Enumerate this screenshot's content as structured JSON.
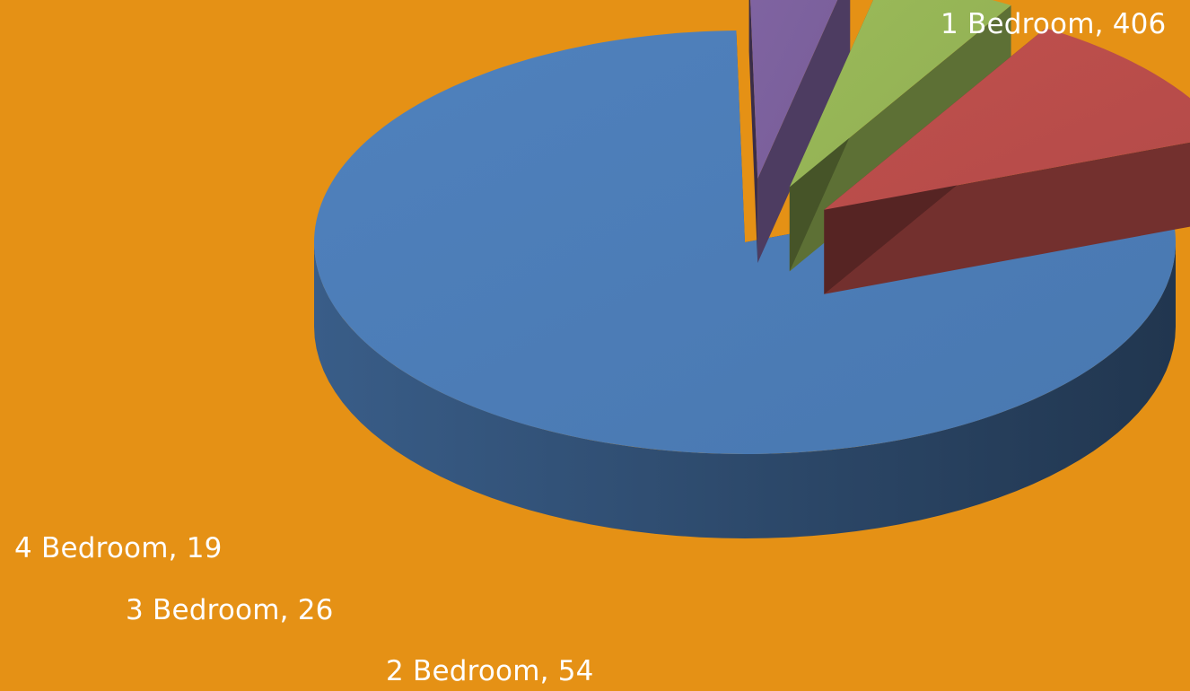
{
  "chart_data": {
    "type": "pie",
    "style": "3d-exploded",
    "background_color": "#E59115",
    "categories": [
      "1 Bedroom",
      "2 Bedroom",
      "3 Bedroom",
      "4 Bedroom"
    ],
    "values": [
      406,
      54,
      26,
      19
    ],
    "colors": [
      "#4F81BD",
      "#C0504D",
      "#9BBB59",
      "#8064A2"
    ],
    "labels": [
      "1 Bedroom, 406",
      "2 Bedroom, 54",
      "3 Bedroom, 26",
      "4 Bedroom, 19"
    ],
    "legend": "none"
  }
}
